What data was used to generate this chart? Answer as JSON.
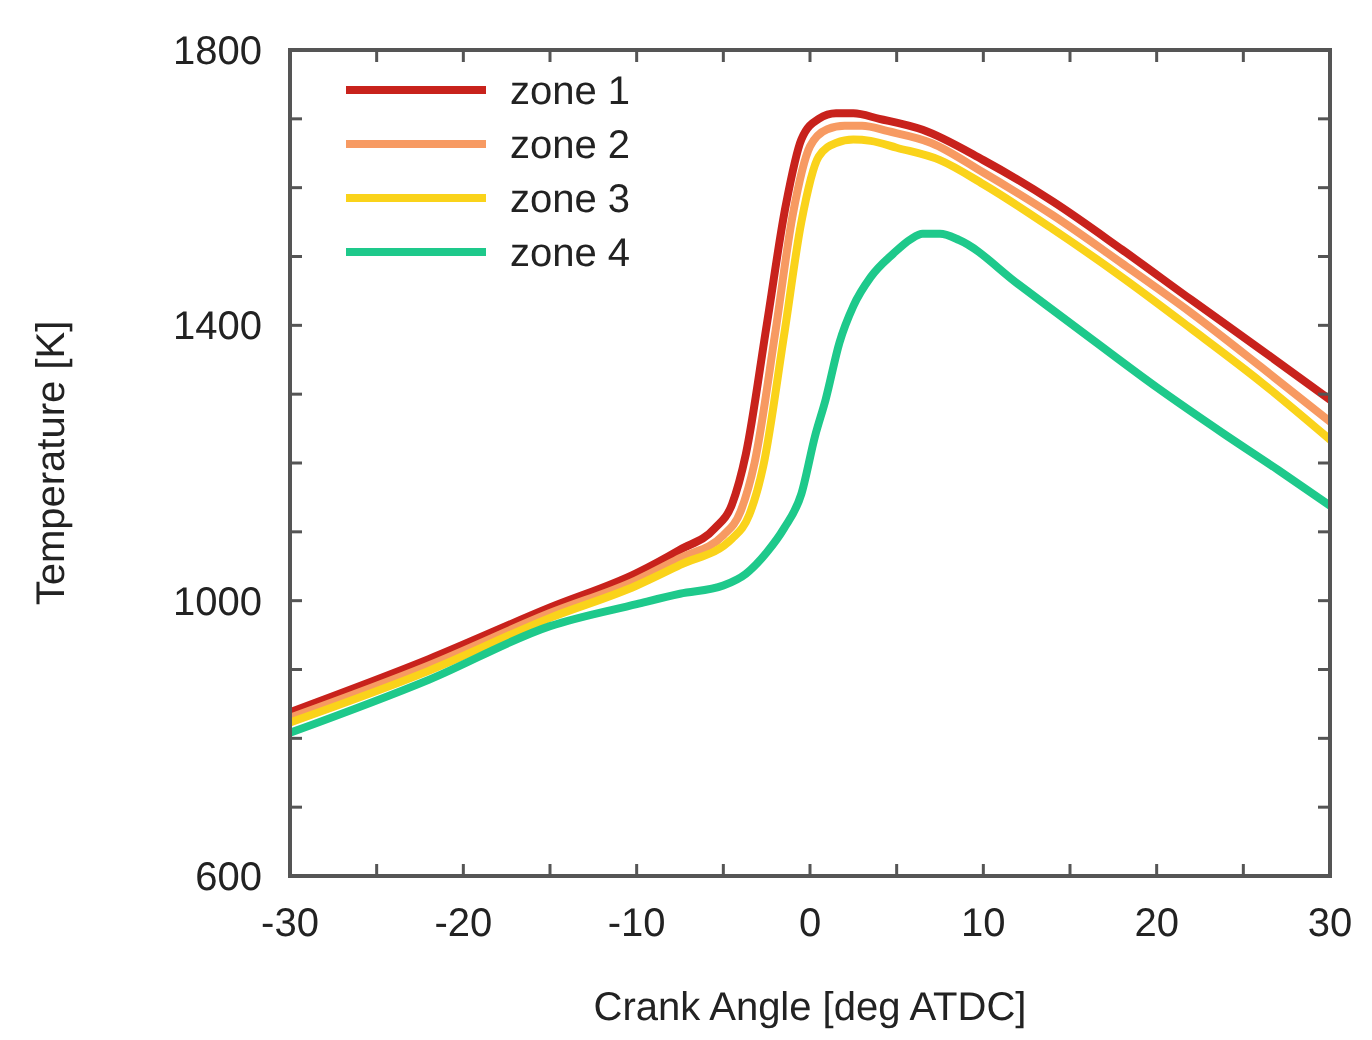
{
  "chart_data": {
    "type": "line",
    "xlabel": "Crank Angle [deg ATDC]",
    "ylabel": "Temperature [K]",
    "xlim": [
      -30,
      30
    ],
    "ylim": [
      600,
      1800
    ],
    "xticks": [
      -30,
      {
        "value": -25,
        "label": null
      },
      -20,
      {
        "value": -15,
        "label": null
      },
      -10,
      {
        "value": -5,
        "label": null
      },
      0,
      {
        "value": 5,
        "label": null
      },
      10,
      {
        "value": 15,
        "label": null
      },
      20,
      {
        "value": 25,
        "label": null
      },
      30
    ],
    "yticks": [
      600,
      {
        "value": 700,
        "label": null
      },
      {
        "value": 800,
        "label": null
      },
      {
        "value": 900,
        "label": null
      },
      1000,
      {
        "value": 1100,
        "label": null
      },
      {
        "value": 1200,
        "label": null
      },
      {
        "value": 1300,
        "label": null
      },
      1400,
      {
        "value": 1500,
        "label": null
      },
      {
        "value": 1600,
        "label": null
      },
      {
        "value": 1700,
        "label": null
      },
      1800
    ],
    "grid": false,
    "legend": "top left",
    "marker": "none",
    "line_style": "solid",
    "series": [
      {
        "name": "zone 1",
        "color": "#c8221c",
        "x": [
          -30,
          -22,
          -15,
          -10,
          -7.5,
          -5.5,
          -4.5,
          -3.7,
          -2.5,
          -1.4,
          -0.5,
          0.5,
          1.5,
          2.5,
          4,
          6.5,
          10,
          14,
          18,
          22,
          26,
          30
        ],
        "values": [
          838,
          915,
          990,
          1040,
          1074,
          1105,
          1140,
          1213,
          1400,
          1574,
          1670,
          1700,
          1708,
          1708,
          1700,
          1684,
          1640,
          1580,
          1510,
          1437,
          1365,
          1292
        ]
      },
      {
        "name": "zone 2",
        "color": "#f79a62",
        "x": [
          -30,
          -22,
          -15,
          -10,
          -7.5,
          -5,
          -4,
          -3.2,
          -2,
          -1,
          0,
          1,
          2,
          3,
          4.5,
          7,
          10,
          14,
          18,
          22,
          26,
          30
        ],
        "values": [
          830,
          906,
          982,
          1030,
          1062,
          1095,
          1130,
          1200,
          1390,
          1560,
          1660,
          1685,
          1690,
          1690,
          1682,
          1665,
          1622,
          1560,
          1490,
          1418,
          1340,
          1260
        ]
      },
      {
        "name": "zone 3",
        "color": "#fad31a",
        "x": [
          -30,
          -22,
          -15,
          -10,
          -7.5,
          -4.5,
          -3.5,
          -2.7,
          -1.5,
          -0.5,
          0.5,
          1.5,
          2.5,
          3.5,
          5,
          7.5,
          10,
          14,
          18,
          22,
          26,
          30
        ],
        "values": [
          823,
          898,
          975,
          1022,
          1052,
          1090,
          1125,
          1195,
          1385,
          1550,
          1645,
          1665,
          1670,
          1668,
          1658,
          1640,
          1605,
          1540,
          1470,
          1395,
          1318,
          1234
        ]
      },
      {
        "name": "zone 4",
        "color": "#1ec98b",
        "x": [
          -30,
          -22,
          -15,
          -10,
          -7.5,
          -5,
          -3.7,
          -2.5,
          -1.5,
          -0.5,
          0.3,
          0.9,
          1.7,
          2.5,
          3.5,
          4.8,
          5.8,
          6.5,
          7.5,
          8.6,
          12,
          16.3,
          20,
          23.9,
          27,
          30
        ],
        "values": [
          808,
          885,
          963,
          995,
          1010,
          1022,
          1039,
          1070,
          1105,
          1155,
          1240,
          1292,
          1375,
          1428,
          1470,
          1504,
          1525,
          1533,
          1533,
          1524,
          1460,
          1379,
          1310,
          1242,
          1190,
          1138
        ]
      }
    ]
  }
}
